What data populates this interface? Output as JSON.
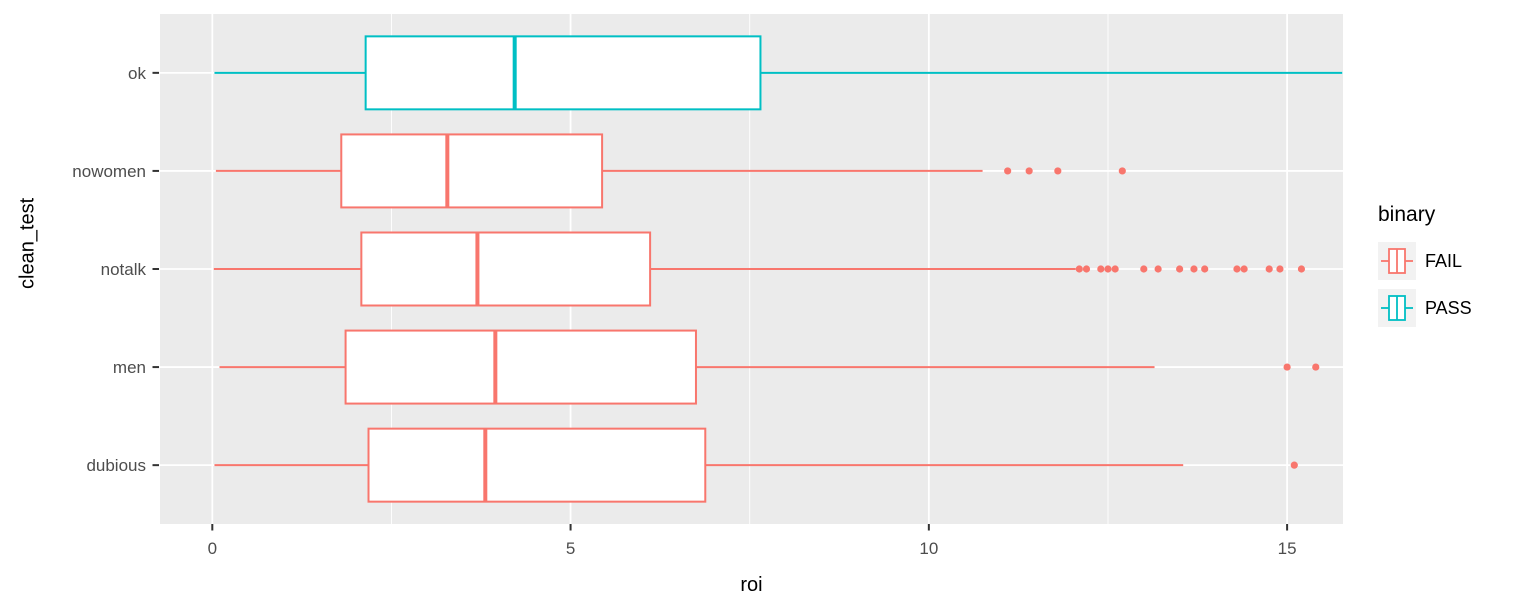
{
  "chart_data": {
    "type": "boxplot",
    "orientation": "horizontal",
    "title": "",
    "xlabel": "roi",
    "ylabel": "clean_test",
    "xlim": [
      -0.73,
      15.78
    ],
    "x_ticks": [
      0,
      5,
      10,
      15
    ],
    "x_minor_gridlines": [
      2.5,
      7.5,
      12.5
    ],
    "categories": [
      "ok",
      "nowomen",
      "notalk",
      "men",
      "dubious"
    ],
    "series": [
      {
        "category": "ok",
        "group": "PASS",
        "color": "#00BFC4",
        "whisker_min": 0.03,
        "q1": 2.14,
        "median": 4.22,
        "q3": 7.65,
        "whisker_max": 15.77,
        "outliers": []
      },
      {
        "category": "nowomen",
        "group": "FAIL",
        "color": "#F8766D",
        "whisker_min": 0.05,
        "q1": 1.8,
        "median": 3.28,
        "q3": 5.44,
        "whisker_max": 10.75,
        "outliers": [
          11.1,
          11.4,
          11.8,
          12.7
        ]
      },
      {
        "category": "notalk",
        "group": "FAIL",
        "color": "#F8766D",
        "whisker_min": 0.02,
        "q1": 2.08,
        "median": 3.7,
        "q3": 6.11,
        "whisker_max": 12.05,
        "outliers": [
          12.1,
          12.2,
          12.4,
          12.5,
          12.6,
          13.0,
          13.2,
          13.5,
          13.7,
          13.85,
          14.3,
          14.4,
          14.75,
          14.9,
          15.2
        ]
      },
      {
        "category": "men",
        "group": "FAIL",
        "color": "#F8766D",
        "whisker_min": 0.1,
        "q1": 1.86,
        "median": 3.95,
        "q3": 6.75,
        "whisker_max": 13.15,
        "outliers": [
          15.0,
          15.4
        ]
      },
      {
        "category": "dubious",
        "group": "FAIL",
        "color": "#F8766D",
        "whisker_min": 0.03,
        "q1": 2.18,
        "median": 3.81,
        "q3": 6.88,
        "whisker_max": 13.55,
        "outliers": [
          15.1
        ]
      }
    ],
    "legend": {
      "title": "binary",
      "position": "right",
      "items": [
        {
          "label": "FAIL",
          "color": "#F8766D"
        },
        {
          "label": "PASS",
          "color": "#00BFC4"
        }
      ]
    },
    "style": {
      "panel_bg": "#EBEBEB",
      "grid_color": "#FFFFFF",
      "axis_text_color": "#4D4D4D",
      "tick_mark_color": "#333333",
      "legend_key_bg": "#F2F2F2",
      "box_fill": "#FFFFFF"
    }
  }
}
